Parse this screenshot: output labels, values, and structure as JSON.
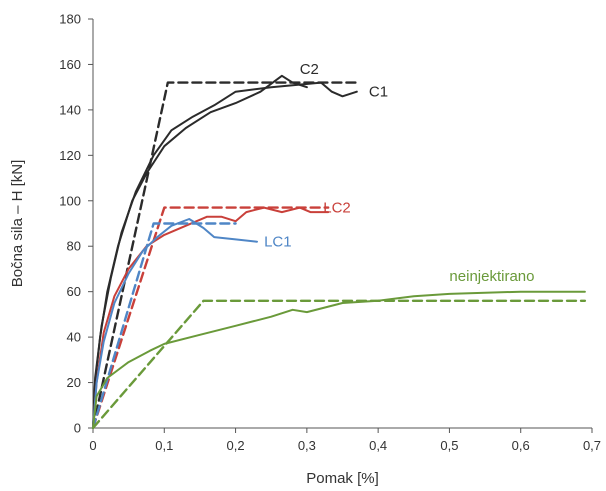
{
  "chart_data": {
    "type": "line",
    "title": "",
    "xlabel": "Pomak [%]",
    "ylabel": "Bočna sila – H [kN]",
    "xlim": [
      0,
      0.7
    ],
    "ylim": [
      0,
      180
    ],
    "x_ticks": [
      0,
      0.1,
      0.2,
      0.3,
      0.4,
      0.5,
      0.6,
      0.7
    ],
    "x_tick_labels": [
      "0",
      "0,1",
      "0,2",
      "0,3",
      "0,4",
      "0,5",
      "0,6",
      "0,7"
    ],
    "y_ticks": [
      0,
      20,
      40,
      60,
      80,
      100,
      120,
      140,
      160,
      180
    ],
    "y_tick_labels": [
      "0",
      "20",
      "40",
      "60",
      "80",
      "100",
      "120",
      "140",
      "160",
      "180"
    ],
    "grid": false,
    "legend": "none",
    "series": [
      {
        "name": "C2",
        "color": "#2b2b2b",
        "style": "solid",
        "label_at": [
          0.29,
          158
        ],
        "points": [
          [
            0,
            0
          ],
          [
            0.003,
            20
          ],
          [
            0.01,
            40
          ],
          [
            0.02,
            60
          ],
          [
            0.035,
            80
          ],
          [
            0.055,
            100
          ],
          [
            0.075,
            112
          ],
          [
            0.1,
            124
          ],
          [
            0.13,
            132
          ],
          [
            0.165,
            139
          ],
          [
            0.2,
            143
          ],
          [
            0.235,
            148
          ],
          [
            0.265,
            155
          ],
          [
            0.28,
            152
          ],
          [
            0.3,
            150
          ]
        ]
      },
      {
        "name": "C1",
        "color": "#2b2b2b",
        "style": "solid",
        "label_at": [
          0.387,
          148
        ],
        "points": [
          [
            0,
            0
          ],
          [
            0.003,
            22
          ],
          [
            0.012,
            45
          ],
          [
            0.025,
            66
          ],
          [
            0.04,
            86
          ],
          [
            0.06,
            104
          ],
          [
            0.085,
            120
          ],
          [
            0.11,
            131
          ],
          [
            0.14,
            137
          ],
          [
            0.17,
            142
          ],
          [
            0.2,
            148
          ],
          [
            0.25,
            150
          ],
          [
            0.32,
            152
          ],
          [
            0.335,
            148
          ],
          [
            0.35,
            146
          ],
          [
            0.37,
            148
          ]
        ]
      },
      {
        "name": "C1 bilinear",
        "color": "#2b2b2b",
        "style": "dashed",
        "points": [
          [
            0,
            0
          ],
          [
            0.105,
            152
          ],
          [
            0.37,
            152
          ]
        ]
      },
      {
        "name": "LC2",
        "color": "#c9403a",
        "style": "solid",
        "label_at": [
          0.323,
          97
        ],
        "points": [
          [
            0,
            0
          ],
          [
            0.005,
            20
          ],
          [
            0.015,
            42
          ],
          [
            0.03,
            58
          ],
          [
            0.05,
            70
          ],
          [
            0.075,
            80
          ],
          [
            0.1,
            85
          ],
          [
            0.13,
            89
          ],
          [
            0.16,
            93
          ],
          [
            0.18,
            93
          ],
          [
            0.2,
            91
          ],
          [
            0.215,
            95
          ],
          [
            0.24,
            97
          ],
          [
            0.265,
            95
          ],
          [
            0.29,
            97
          ],
          [
            0.305,
            95
          ],
          [
            0.33,
            95
          ]
        ]
      },
      {
        "name": "LC2 bilinear",
        "color": "#c9403a",
        "style": "dashed",
        "points": [
          [
            0,
            0
          ],
          [
            0.1,
            97
          ],
          [
            0.33,
            97
          ]
        ]
      },
      {
        "name": "LC1",
        "color": "#4f86c6",
        "style": "solid",
        "label_at": [
          0.24,
          82
        ],
        "points": [
          [
            0,
            0
          ],
          [
            0.005,
            20
          ],
          [
            0.015,
            38
          ],
          [
            0.03,
            55
          ],
          [
            0.05,
            68
          ],
          [
            0.07,
            78
          ],
          [
            0.09,
            84
          ],
          [
            0.11,
            89
          ],
          [
            0.135,
            92
          ],
          [
            0.155,
            88
          ],
          [
            0.17,
            84
          ],
          [
            0.2,
            83
          ],
          [
            0.23,
            82
          ]
        ]
      },
      {
        "name": "LC1 bilinear",
        "color": "#4f86c6",
        "style": "dashed",
        "points": [
          [
            0,
            0
          ],
          [
            0.085,
            90
          ],
          [
            0.2,
            90
          ]
        ]
      },
      {
        "name": "neinjektirano",
        "color": "#6a9a3a",
        "style": "solid",
        "label_at": [
          0.5,
          67
        ],
        "points": [
          [
            0,
            0
          ],
          [
            0.005,
            14
          ],
          [
            0.02,
            22
          ],
          [
            0.05,
            29
          ],
          [
            0.08,
            34
          ],
          [
            0.1,
            37
          ],
          [
            0.15,
            41
          ],
          [
            0.2,
            45
          ],
          [
            0.25,
            49
          ],
          [
            0.28,
            52
          ],
          [
            0.3,
            51
          ],
          [
            0.35,
            55
          ],
          [
            0.4,
            56
          ],
          [
            0.45,
            58
          ],
          [
            0.5,
            59
          ],
          [
            0.6,
            60
          ],
          [
            0.69,
            60
          ]
        ]
      },
      {
        "name": "neinjektirano bilinear",
        "color": "#6a9a3a",
        "style": "dashed",
        "points": [
          [
            0,
            0
          ],
          [
            0.155,
            56
          ],
          [
            0.69,
            56
          ]
        ]
      }
    ]
  }
}
